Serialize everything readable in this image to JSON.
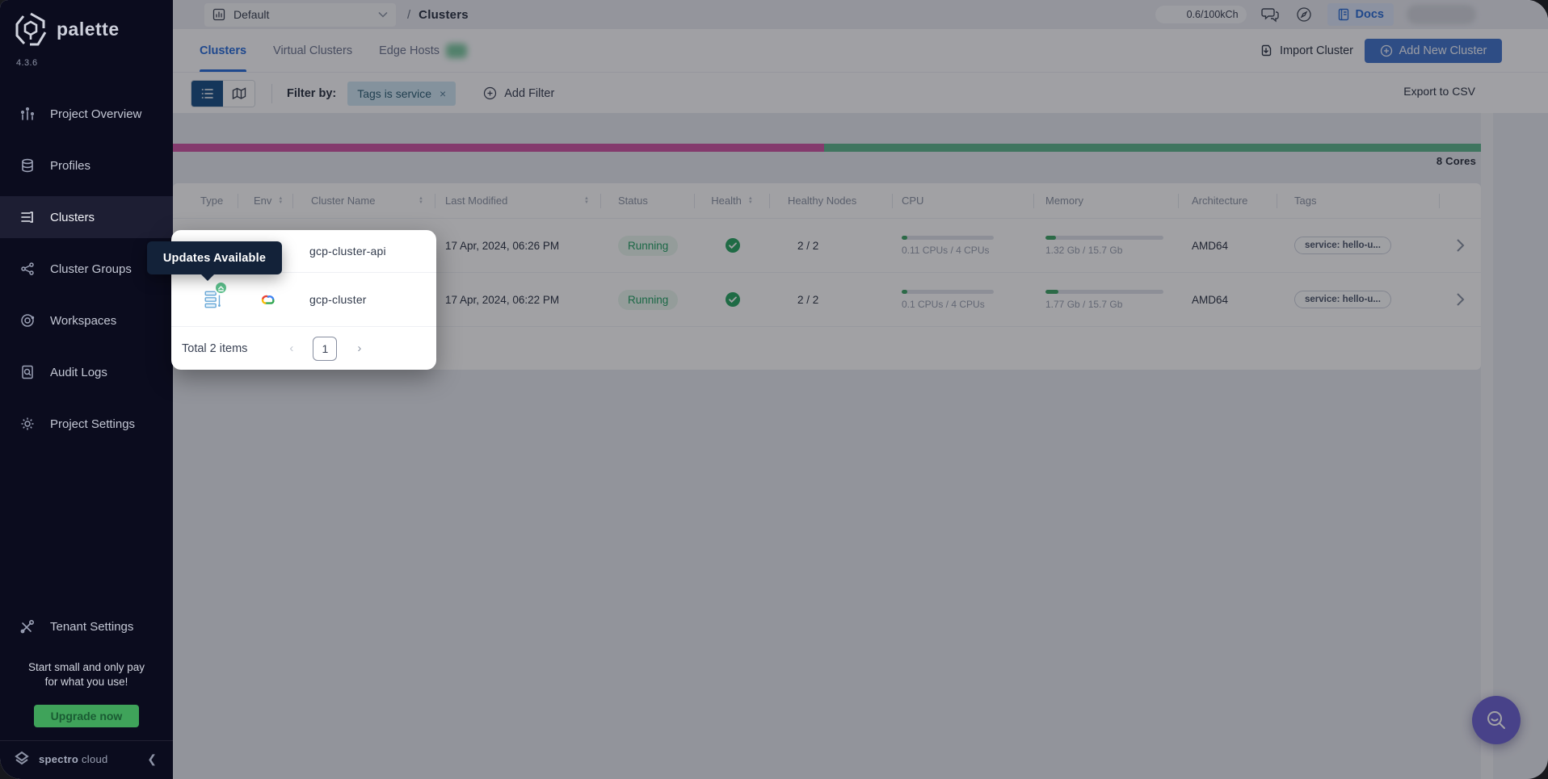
{
  "sidebar": {
    "logo": "palette",
    "version": "4.3.6",
    "items": [
      {
        "label": "Project Overview",
        "icon": "chart-icon",
        "active": false
      },
      {
        "label": "Profiles",
        "icon": "database-icon",
        "active": false
      },
      {
        "label": "Clusters",
        "icon": "list-icon",
        "active": true
      },
      {
        "label": "Cluster Groups",
        "icon": "network-icon",
        "active": false
      },
      {
        "label": "Workspaces",
        "icon": "orbit-icon",
        "active": false
      },
      {
        "label": "Audit Logs",
        "icon": "doc-search-icon",
        "active": false
      },
      {
        "label": "Project Settings",
        "icon": "gear-icon",
        "active": false
      }
    ],
    "tenant_settings": "Tenant Settings",
    "promo_line1": "Start small and only pay",
    "promo_line2": "for what you use!",
    "upgrade_label": "Upgrade now",
    "brand_bold": "spectro",
    "brand_light": "cloud"
  },
  "topbar": {
    "project_selector": "Default",
    "breadcrumb_sep": "/",
    "breadcrumb": "Clusters",
    "usage": "0.6/100kCh",
    "docs_label": "Docs"
  },
  "tabs": [
    {
      "label": "Clusters",
      "active": true
    },
    {
      "label": "Virtual Clusters",
      "active": false
    },
    {
      "label": "Edge Hosts",
      "active": false,
      "badge": true
    }
  ],
  "actions": {
    "import_label": "Import Cluster",
    "add_label": "Add New Cluster",
    "filter_by": "Filter by:",
    "filter_chip": "Tags is service",
    "chip_close": "×",
    "add_filter": "Add Filter",
    "export_csv": "Export to CSV"
  },
  "usage_bar": {
    "cores_label": "8 Cores",
    "pink_color": "#cf58a5",
    "green_color": "#5fb78e",
    "pink_pct": 49.8
  },
  "table": {
    "columns": [
      {
        "label": "Type",
        "sortable": false
      },
      {
        "label": "Env",
        "sortable": true
      },
      {
        "label": "Cluster Name",
        "sortable": true
      },
      {
        "label": "Last Modified",
        "sortable": true
      },
      {
        "label": "Status",
        "sortable": false
      },
      {
        "label": "Health",
        "sortable": true
      },
      {
        "label": "Healthy Nodes",
        "sortable": false
      },
      {
        "label": "CPU",
        "sortable": false
      },
      {
        "label": "Memory",
        "sortable": false
      },
      {
        "label": "Architecture",
        "sortable": false
      },
      {
        "label": "Tags",
        "sortable": false
      }
    ],
    "rows": [
      {
        "name": "gcp-cluster-api",
        "env": "gcp-icon",
        "modified": "17 Apr, 2024, 06:26 PM",
        "status": "Running",
        "health": "healthy",
        "nodes": "2 / 2",
        "cpu_label": "0.11 CPUs / 4 CPUs",
        "cpu_pct": 6,
        "mem_label": "1.32 Gb / 15.7 Gb",
        "mem_pct": 9,
        "arch": "AMD64",
        "tag": "service: hello-u...",
        "updates_available": false
      },
      {
        "name": "gcp-cluster",
        "env": "gcp-icon",
        "modified": "17 Apr, 2024, 06:22 PM",
        "status": "Running",
        "health": "healthy",
        "nodes": "2 / 2",
        "cpu_label": "0.1 CPUs / 4 CPUs",
        "cpu_pct": 6,
        "mem_label": "1.77 Gb / 15.7 Gb",
        "mem_pct": 11,
        "arch": "AMD64",
        "tag": "service: hello-u...",
        "updates_available": true
      }
    ]
  },
  "pagination": {
    "total": "Total 2 items",
    "page": "1"
  },
  "tour": {
    "tooltip": "Updates Available"
  }
}
